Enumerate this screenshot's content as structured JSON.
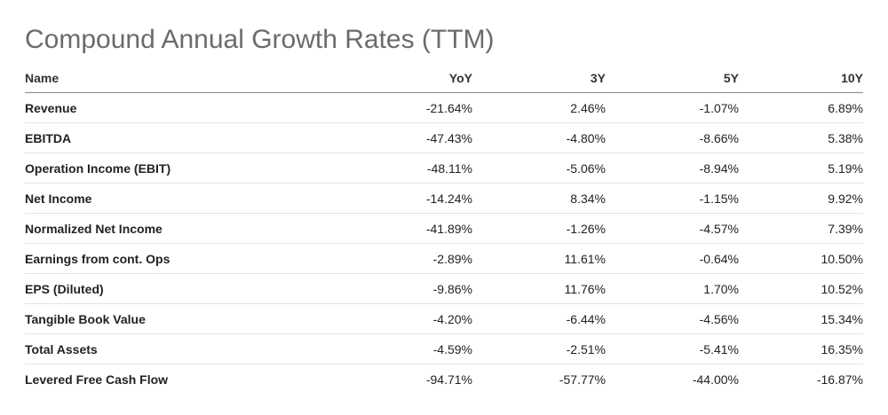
{
  "title": "Compound Annual Growth Rates (TTM)",
  "columns": [
    "Name",
    "YoY",
    "3Y",
    "5Y",
    "10Y"
  ],
  "rows": [
    {
      "name": "Revenue",
      "yoy": "-21.64%",
      "y3": "2.46%",
      "y5": "-1.07%",
      "y10": "6.89%"
    },
    {
      "name": "EBITDA",
      "yoy": "-47.43%",
      "y3": "-4.80%",
      "y5": "-8.66%",
      "y10": "5.38%"
    },
    {
      "name": "Operation Income (EBIT)",
      "yoy": "-48.11%",
      "y3": "-5.06%",
      "y5": "-8.94%",
      "y10": "5.19%"
    },
    {
      "name": "Net Income",
      "yoy": "-14.24%",
      "y3": "8.34%",
      "y5": "-1.15%",
      "y10": "9.92%"
    },
    {
      "name": "Normalized Net Income",
      "yoy": "-41.89%",
      "y3": "-1.26%",
      "y5": "-4.57%",
      "y10": "7.39%"
    },
    {
      "name": "Earnings from cont. Ops",
      "yoy": "-2.89%",
      "y3": "11.61%",
      "y5": "-0.64%",
      "y10": "10.50%"
    },
    {
      "name": "EPS (Diluted)",
      "yoy": "-9.86%",
      "y3": "11.76%",
      "y5": "1.70%",
      "y10": "10.52%"
    },
    {
      "name": "Tangible Book Value",
      "yoy": "-4.20%",
      "y3": "-6.44%",
      "y5": "-4.56%",
      "y10": "15.34%"
    },
    {
      "name": "Total Assets",
      "yoy": "-4.59%",
      "y3": "-2.51%",
      "y5": "-5.41%",
      "y10": "16.35%"
    },
    {
      "name": "Levered Free Cash Flow",
      "yoy": "-94.71%",
      "y3": "-57.77%",
      "y5": "-44.00%",
      "y10": "-16.87%"
    }
  ]
}
